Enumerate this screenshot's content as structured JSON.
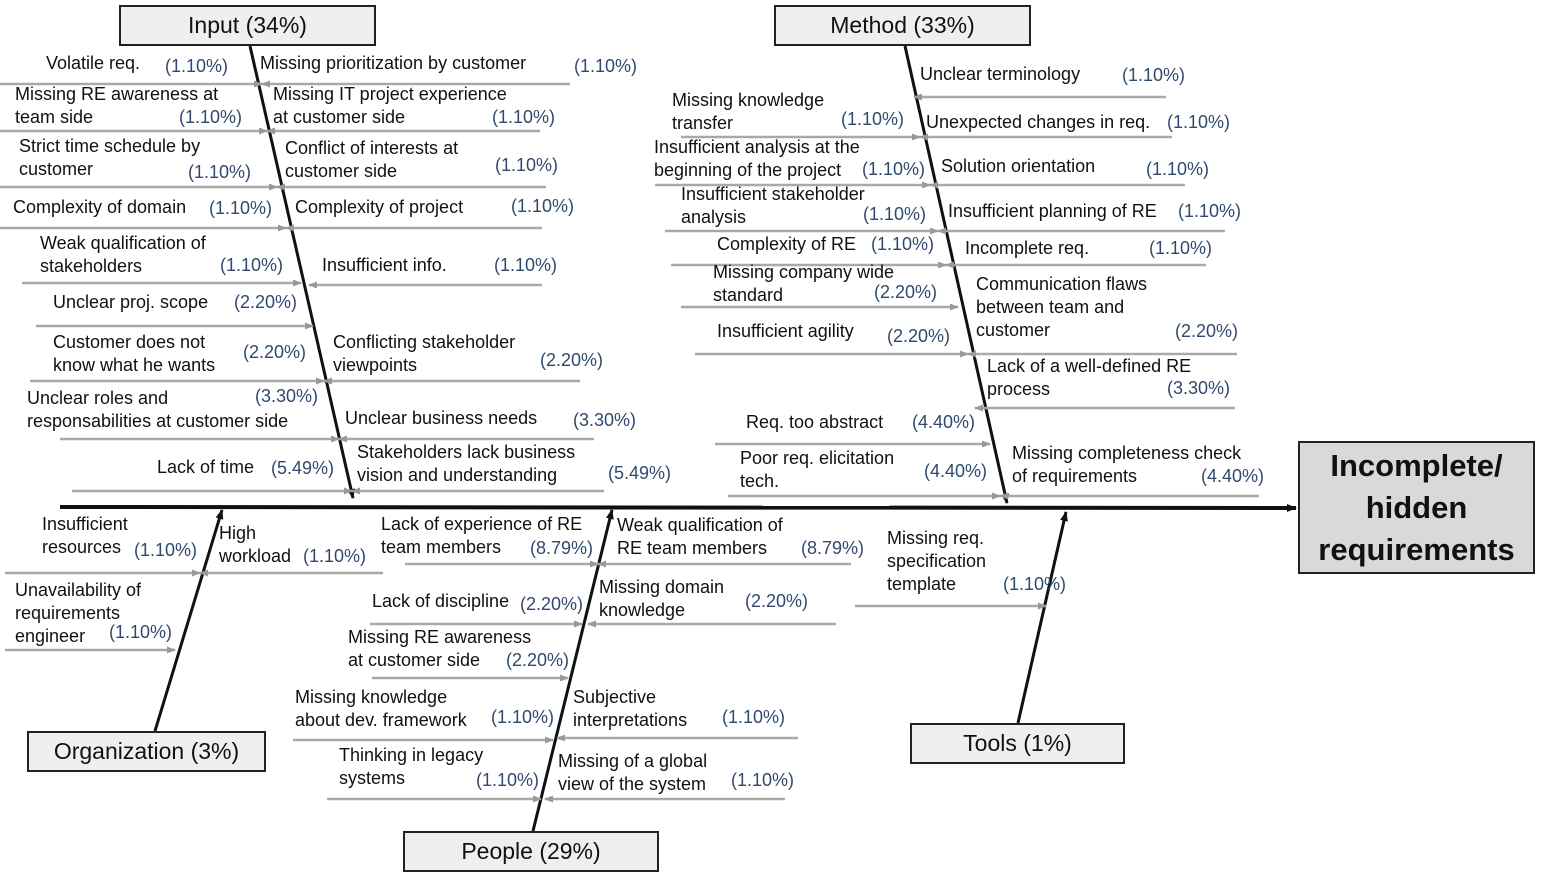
{
  "effect": {
    "label": "Incomplete/ hidden requirements"
  },
  "categories": {
    "input": "Input (34%)",
    "method": "Method (33%)",
    "organization": "Organization (3%)",
    "tools": "Tools (1%)",
    "people": "People (29%)"
  },
  "causes": {
    "input": [
      {
        "label": "Volatile req.",
        "pct": "(1.10%)"
      },
      {
        "label": "Missing prioritization by customer",
        "pct": "(1.10%)"
      },
      {
        "label": "Missing RE awareness at\nteam side",
        "pct": "(1.10%)"
      },
      {
        "label": "Missing IT project experience\nat customer side",
        "pct": "(1.10%)"
      },
      {
        "label": "Strict time schedule by\ncustomer",
        "pct": "(1.10%)"
      },
      {
        "label": "Conflict of interests at\ncustomer side",
        "pct": "(1.10%)"
      },
      {
        "label": "Complexity of domain",
        "pct": "(1.10%)"
      },
      {
        "label": "Complexity of project",
        "pct": "(1.10%)"
      },
      {
        "label": "Weak qualification of\nstakeholders",
        "pct": "(1.10%)"
      },
      {
        "label": "Insufficient info.",
        "pct": "(1.10%)"
      },
      {
        "label": "Unclear proj. scope",
        "pct": "(2.20%)"
      },
      {
        "label": "Customer does not\nknow what he wants",
        "pct": "(2.20%)"
      },
      {
        "label": "Conflicting stakeholder\nviewpoints",
        "pct": "(2.20%)"
      },
      {
        "label": "Unclear roles and\nresponsabilities at customer side",
        "pct": "(3.30%)"
      },
      {
        "label": "Unclear business needs",
        "pct": "(3.30%)"
      },
      {
        "label": "Lack of time",
        "pct": "(5.49%)"
      },
      {
        "label": "Stakeholders lack business\nvision and understanding",
        "pct": "(5.49%)"
      }
    ],
    "method": [
      {
        "label": "Unclear terminology",
        "pct": "(1.10%)"
      },
      {
        "label": "Missing knowledge\ntransfer",
        "pct": "(1.10%)"
      },
      {
        "label": "Unexpected changes in req.",
        "pct": "(1.10%)"
      },
      {
        "label": "Insufficient analysis at the\nbeginning of the project",
        "pct": "(1.10%)"
      },
      {
        "label": "Solution orientation",
        "pct": "(1.10%)"
      },
      {
        "label": "Insufficient stakeholder\nanalysis",
        "pct": "(1.10%)"
      },
      {
        "label": "Insufficient planning of RE",
        "pct": "(1.10%)"
      },
      {
        "label": "Complexity of RE",
        "pct": "(1.10%)"
      },
      {
        "label": "Incomplete req.",
        "pct": "(1.10%)"
      },
      {
        "label": "Missing company wide\nstandard",
        "pct": "(2.20%)"
      },
      {
        "label": "Communication flaws\nbetween team and\ncustomer",
        "pct": "(2.20%)"
      },
      {
        "label": "Insufficient agility",
        "pct": "(2.20%)"
      },
      {
        "label": "Lack of a well-defined RE\nprocess",
        "pct": "(3.30%)"
      },
      {
        "label": "Req. too abstract",
        "pct": "(4.40%)"
      },
      {
        "label": "Poor req. elicitation\ntech.",
        "pct": "(4.40%)"
      },
      {
        "label": "Missing completeness check\nof requirements",
        "pct": "(4.40%)"
      }
    ],
    "organization": [
      {
        "label": "Insufficient\nresources",
        "pct": "(1.10%)"
      },
      {
        "label": "High\nworkload",
        "pct": "(1.10%)"
      },
      {
        "label": "Unavailability of\nrequirements\nengineer",
        "pct": "(1.10%)"
      }
    ],
    "people": [
      {
        "label": "Lack of experience of RE\nteam members",
        "pct": "(8.79%)"
      },
      {
        "label": "Weak qualification of\nRE team members",
        "pct": "(8.79%)"
      },
      {
        "label": "Lack of discipline",
        "pct": "(2.20%)"
      },
      {
        "label": "Missing domain\nknowledge",
        "pct": "(2.20%)"
      },
      {
        "label": "Missing RE awareness\nat customer side",
        "pct": "(2.20%)"
      },
      {
        "label": "Missing knowledge\nabout dev. framework",
        "pct": "(1.10%)"
      },
      {
        "label": "Subjective\ninterpretations",
        "pct": "(1.10%)"
      },
      {
        "label": "Thinking in legacy\nsystems",
        "pct": "(1.10%)"
      },
      {
        "label": "Missing of a global\nview of the system",
        "pct": "(1.10%)"
      }
    ],
    "tools": [
      {
        "label": "Missing req.\nspecification\ntemplate",
        "pct": "(1.10%)"
      }
    ]
  }
}
